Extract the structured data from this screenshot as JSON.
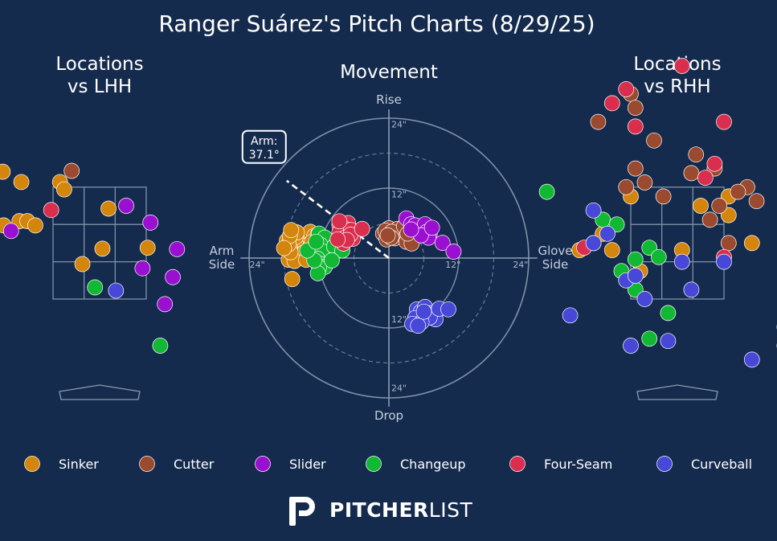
{
  "title": "Ranger Suárez's Pitch Charts (8/29/25)",
  "brand": {
    "bold": "PITCHER",
    "light": "LIST"
  },
  "colors": {
    "background": "#152b4d",
    "grid": "#8b9cb3",
    "Sinker": "#d3860b",
    "Cutter": "#9a4a2e",
    "Slider": "#9a10d0",
    "Changeup": "#11b833",
    "Four-Seam": "#d92e4d",
    "Curveball": "#4747d8"
  },
  "chart_data": [
    {
      "panel": "lhh",
      "type": "scatter",
      "title": "Locations\nvs LHH",
      "points": [
        {
          "pitch": "Sinker",
          "x": -2.08,
          "y": 3.53
        },
        {
          "pitch": "Sinker",
          "x": -1.68,
          "y": 3.31
        },
        {
          "pitch": "Sinker",
          "x": -0.85,
          "y": 3.31
        },
        {
          "pitch": "Sinker",
          "x": -0.76,
          "y": 3.15
        },
        {
          "pitch": "Sinker",
          "x": -1.72,
          "y": 2.47
        },
        {
          "pitch": "Sinker",
          "x": -1.55,
          "y": 2.47
        },
        {
          "pitch": "Sinker",
          "x": -1.38,
          "y": 2.38
        },
        {
          "pitch": "Sinker",
          "x": -2.06,
          "y": 2.38
        },
        {
          "pitch": "Sinker",
          "x": 0.19,
          "y": 2.74
        },
        {
          "pitch": "Sinker",
          "x": 0.06,
          "y": 1.88
        },
        {
          "pitch": "Sinker",
          "x": -0.37,
          "y": 1.55
        },
        {
          "pitch": "Sinker",
          "x": 1.03,
          "y": 1.9
        },
        {
          "pitch": "Cutter",
          "x": -0.6,
          "y": 3.55
        },
        {
          "pitch": "Slider",
          "x": 0.57,
          "y": 2.8
        },
        {
          "pitch": "Slider",
          "x": 1.09,
          "y": 2.44
        },
        {
          "pitch": "Slider",
          "x": 1.66,
          "y": 1.87
        },
        {
          "pitch": "Slider",
          "x": 0.92,
          "y": 1.46
        },
        {
          "pitch": "Slider",
          "x": 1.57,
          "y": 1.27
        },
        {
          "pitch": "Slider",
          "x": 1.4,
          "y": 0.69
        },
        {
          "pitch": "Slider",
          "x": -1.9,
          "y": 2.26
        },
        {
          "pitch": "Four-Seam",
          "x": -1.04,
          "y": 2.71
        },
        {
          "pitch": "Changeup",
          "x": -0.1,
          "y": 1.05
        },
        {
          "pitch": "Changeup",
          "x": 1.3,
          "y": -0.2
        },
        {
          "pitch": "Curveball",
          "x": 0.35,
          "y": 0.98
        }
      ]
    },
    {
      "panel": "movement",
      "type": "scatter",
      "title": "Movement",
      "labels": {
        "top": "Rise",
        "bottom": "Drop",
        "left": "Arm\nSide",
        "right": "Glove\nSide"
      },
      "rings": [
        {
          "r": 12,
          "label": "12\""
        },
        {
          "r": 24,
          "label": "24\""
        }
      ],
      "arm_angle": {
        "label": "Arm:\n37.1°",
        "deg": 37.1
      },
      "points": [
        {
          "pitch": "Sinker",
          "x": -14.5,
          "y": 3.5
        },
        {
          "pitch": "Sinker",
          "x": -13.5,
          "y": 4.5
        },
        {
          "pitch": "Sinker",
          "x": -12.8,
          "y": 3.8
        },
        {
          "pitch": "Sinker",
          "x": -14.0,
          "y": 2.2
        },
        {
          "pitch": "Sinker",
          "x": -15.0,
          "y": 1.5
        },
        {
          "pitch": "Sinker",
          "x": -16.0,
          "y": 2.5
        },
        {
          "pitch": "Sinker",
          "x": -16.5,
          "y": 1.0
        },
        {
          "pitch": "Sinker",
          "x": -15.5,
          "y": 0.5
        },
        {
          "pitch": "Sinker",
          "x": -17.0,
          "y": 2.0
        },
        {
          "pitch": "Sinker",
          "x": -17.5,
          "y": 3.0
        },
        {
          "pitch": "Sinker",
          "x": -16.0,
          "y": 3.6
        },
        {
          "pitch": "Sinker",
          "x": -13.2,
          "y": 2.8
        },
        {
          "pitch": "Sinker",
          "x": -12.2,
          "y": 4.0
        },
        {
          "pitch": "Sinker",
          "x": -11.8,
          "y": 3.0
        },
        {
          "pitch": "Sinker",
          "x": -13.8,
          "y": 1.2
        },
        {
          "pitch": "Sinker",
          "x": -15.8,
          "y": 4.4
        },
        {
          "pitch": "Sinker",
          "x": -17.0,
          "y": 0.4
        },
        {
          "pitch": "Sinker",
          "x": -16.8,
          "y": -0.2
        },
        {
          "pitch": "Sinker",
          "x": -14.5,
          "y": 1.0
        },
        {
          "pitch": "Sinker",
          "x": -17.2,
          "y": -0.3
        },
        {
          "pitch": "Sinker",
          "x": -16.2,
          "y": -0.5
        },
        {
          "pitch": "Sinker",
          "x": -14.2,
          "y": -0.3
        },
        {
          "pitch": "Sinker",
          "x": -16.9,
          "y": 1.0
        },
        {
          "pitch": "Sinker",
          "x": -17.2,
          "y": 2.4
        },
        {
          "pitch": "Sinker",
          "x": -17.0,
          "y": 3.8
        },
        {
          "pitch": "Sinker",
          "x": -16.8,
          "y": 4.8
        },
        {
          "pitch": "Sinker",
          "x": -16.6,
          "y": -3.6
        },
        {
          "pitch": "Sinker",
          "x": -18.0,
          "y": 1.7
        },
        {
          "pitch": "Cutter",
          "x": -1.0,
          "y": 4.2
        },
        {
          "pitch": "Cutter",
          "x": 0.0,
          "y": 5.1
        },
        {
          "pitch": "Cutter",
          "x": 0.8,
          "y": 4.0
        },
        {
          "pitch": "Cutter",
          "x": 1.0,
          "y": 3.4
        },
        {
          "pitch": "Cutter",
          "x": 2.0,
          "y": 4.1
        },
        {
          "pitch": "Cutter",
          "x": 1.5,
          "y": 5.0
        },
        {
          "pitch": "Cutter",
          "x": -0.4,
          "y": 3.2
        },
        {
          "pitch": "Cutter",
          "x": -0.6,
          "y": 4.7
        },
        {
          "pitch": "Cutter",
          "x": 0.5,
          "y": 4.5
        },
        {
          "pitch": "Cutter",
          "x": 2.6,
          "y": 5.4
        },
        {
          "pitch": "Cutter",
          "x": 3.0,
          "y": 2.8
        },
        {
          "pitch": "Cutter",
          "x": 3.9,
          "y": 2.5
        },
        {
          "pitch": "Cutter",
          "x": 3.2,
          "y": 4.2
        },
        {
          "pitch": "Cutter",
          "x": 0.4,
          "y": 3.5
        },
        {
          "pitch": "Cutter",
          "x": -0.2,
          "y": 3.9
        },
        {
          "pitch": "Slider",
          "x": 3.0,
          "y": 6.8
        },
        {
          "pitch": "Slider",
          "x": 3.8,
          "y": 5.8
        },
        {
          "pitch": "Slider",
          "x": 4.5,
          "y": 5.6
        },
        {
          "pitch": "Slider",
          "x": 6.2,
          "y": 5.8
        },
        {
          "pitch": "Slider",
          "x": 6.5,
          "y": 4.5
        },
        {
          "pitch": "Slider",
          "x": 7.0,
          "y": 4.1
        },
        {
          "pitch": "Slider",
          "x": 6.8,
          "y": 3.5
        },
        {
          "pitch": "Slider",
          "x": 5.5,
          "y": 3.9
        },
        {
          "pitch": "Slider",
          "x": 7.4,
          "y": 5.2
        },
        {
          "pitch": "Slider",
          "x": 9.2,
          "y": 2.6
        },
        {
          "pitch": "Slider",
          "x": 11.1,
          "y": 1.1
        },
        {
          "pitch": "Slider",
          "x": 3.8,
          "y": 4.9
        },
        {
          "pitch": "Changeup",
          "x": -12.0,
          "y": 4.2
        },
        {
          "pitch": "Changeup",
          "x": -11.0,
          "y": 3.5
        },
        {
          "pitch": "Changeup",
          "x": -11.8,
          "y": 2.3
        },
        {
          "pitch": "Changeup",
          "x": -12.8,
          "y": 2.0
        },
        {
          "pitch": "Changeup",
          "x": -11.5,
          "y": 1.2
        },
        {
          "pitch": "Changeup",
          "x": -12.3,
          "y": -0.1
        },
        {
          "pitch": "Changeup",
          "x": -11.8,
          "y": -1.0
        },
        {
          "pitch": "Changeup",
          "x": -11.0,
          "y": -1.5
        },
        {
          "pitch": "Changeup",
          "x": -12.0,
          "y": -1.6
        },
        {
          "pitch": "Changeup",
          "x": -12.2,
          "y": -2.6
        },
        {
          "pitch": "Changeup",
          "x": -9.4,
          "y": 2.0
        },
        {
          "pitch": "Changeup",
          "x": -8.0,
          "y": 1.3
        },
        {
          "pitch": "Changeup",
          "x": -9.8,
          "y": -0.4
        },
        {
          "pitch": "Changeup",
          "x": -12.8,
          "y": -0.4
        },
        {
          "pitch": "Changeup",
          "x": -14.0,
          "y": 1.3
        },
        {
          "pitch": "Changeup",
          "x": -12.5,
          "y": 2.8
        },
        {
          "pitch": "Four-Seam",
          "x": -7.0,
          "y": 6.0
        },
        {
          "pitch": "Four-Seam",
          "x": -7.5,
          "y": 5.0
        },
        {
          "pitch": "Four-Seam",
          "x": -8.5,
          "y": 5.7
        },
        {
          "pitch": "Four-Seam",
          "x": -8.5,
          "y": 4.4
        },
        {
          "pitch": "Four-Seam",
          "x": -6.5,
          "y": 4.8
        },
        {
          "pitch": "Four-Seam",
          "x": -7.5,
          "y": 3.5
        },
        {
          "pitch": "Four-Seam",
          "x": -6.2,
          "y": 3.3
        },
        {
          "pitch": "Four-Seam",
          "x": -8.5,
          "y": 6.3
        },
        {
          "pitch": "Four-Seam",
          "x": -6.6,
          "y": 4.0
        },
        {
          "pitch": "Four-Seam",
          "x": -7.8,
          "y": 2.5
        },
        {
          "pitch": "Four-Seam",
          "x": -4.6,
          "y": 5.0
        },
        {
          "pitch": "Four-Seam",
          "x": -7.2,
          "y": 3.1
        },
        {
          "pitch": "Four-Seam",
          "x": -8.8,
          "y": 3.2
        },
        {
          "pitch": "Curveball",
          "x": 4.8,
          "y": -8.8
        },
        {
          "pitch": "Curveball",
          "x": 5.5,
          "y": -9.2
        },
        {
          "pitch": "Curveball",
          "x": 6.2,
          "y": -8.4
        },
        {
          "pitch": "Curveball",
          "x": 7.0,
          "y": -9.5
        },
        {
          "pitch": "Curveball",
          "x": 6.0,
          "y": -10.0
        },
        {
          "pitch": "Curveball",
          "x": 5.0,
          "y": -11.0
        },
        {
          "pitch": "Curveball",
          "x": 4.5,
          "y": -10.3
        },
        {
          "pitch": "Curveball",
          "x": 8.0,
          "y": -9.5
        },
        {
          "pitch": "Curveball",
          "x": 8.0,
          "y": -10.5
        },
        {
          "pitch": "Curveball",
          "x": 7.0,
          "y": -10.2
        },
        {
          "pitch": "Curveball",
          "x": 5.6,
          "y": -11.0
        },
        {
          "pitch": "Curveball",
          "x": 8.6,
          "y": -8.7
        },
        {
          "pitch": "Curveball",
          "x": 10.2,
          "y": -8.8
        },
        {
          "pitch": "Curveball",
          "x": 4.0,
          "y": -11.3
        },
        {
          "pitch": "Curveball",
          "x": 5.0,
          "y": -11.6
        },
        {
          "pitch": "Curveball",
          "x": 6.0,
          "y": -9.2
        }
      ]
    },
    {
      "panel": "rhh",
      "type": "scatter",
      "title": "Locations\nvs RHH",
      "points": [
        {
          "pitch": "Sinker",
          "x": -1.0,
          "y": 3.0
        },
        {
          "pitch": "Sinker",
          "x": 1.1,
          "y": 3.0
        },
        {
          "pitch": "Sinker",
          "x": 1.1,
          "y": 2.6
        },
        {
          "pitch": "Sinker",
          "x": 0.5,
          "y": 2.8
        },
        {
          "pitch": "Sinker",
          "x": -1.6,
          "y": 2.2
        },
        {
          "pitch": "Sinker",
          "x": -2.1,
          "y": 1.85
        },
        {
          "pitch": "Sinker",
          "x": -1.8,
          "y": 2.0
        },
        {
          "pitch": "Sinker",
          "x": -1.4,
          "y": 1.85
        },
        {
          "pitch": "Sinker",
          "x": 0.1,
          "y": 1.85
        },
        {
          "pitch": "Sinker",
          "x": -0.8,
          "y": 1.4
        },
        {
          "pitch": "Sinker",
          "x": 1.6,
          "y": 2.0
        },
        {
          "pitch": "Cutter",
          "x": -1.7,
          "y": 4.6
        },
        {
          "pitch": "Cutter",
          "x": -1.0,
          "y": 5.2
        },
        {
          "pitch": "Cutter",
          "x": -0.9,
          "y": 4.9
        },
        {
          "pitch": "Cutter",
          "x": -0.5,
          "y": 4.2
        },
        {
          "pitch": "Cutter",
          "x": -0.9,
          "y": 3.6
        },
        {
          "pitch": "Cutter",
          "x": -0.7,
          "y": 3.3
        },
        {
          "pitch": "Cutter",
          "x": 0.3,
          "y": 3.5
        },
        {
          "pitch": "Cutter",
          "x": 0.8,
          "y": 3.6
        },
        {
          "pitch": "Cutter",
          "x": 0.9,
          "y": 2.8
        },
        {
          "pitch": "Cutter",
          "x": 0.7,
          "y": 2.5
        },
        {
          "pitch": "Cutter",
          "x": 1.5,
          "y": 3.2
        },
        {
          "pitch": "Cutter",
          "x": 1.3,
          "y": 3.1
        },
        {
          "pitch": "Cutter",
          "x": -0.3,
          "y": 3.0
        },
        {
          "pitch": "Cutter",
          "x": 1.1,
          "y": 2.0
        },
        {
          "pitch": "Cutter",
          "x": 1.7,
          "y": 2.9
        },
        {
          "pitch": "Cutter",
          "x": 0.4,
          "y": 3.9
        },
        {
          "pitch": "Cutter",
          "x": -1.1,
          "y": 3.2
        },
        {
          "pitch": "Four-Seam",
          "x": -1.4,
          "y": 5.0
        },
        {
          "pitch": "Four-Seam",
          "x": -1.1,
          "y": 5.3
        },
        {
          "pitch": "Four-Seam",
          "x": -0.9,
          "y": 4.5
        },
        {
          "pitch": "Four-Seam",
          "x": 0.1,
          "y": 5.8
        },
        {
          "pitch": "Four-Seam",
          "x": 1.0,
          "y": 4.6
        },
        {
          "pitch": "Four-Seam",
          "x": 0.8,
          "y": 3.7
        },
        {
          "pitch": "Four-Seam",
          "x": 0.6,
          "y": 3.4
        },
        {
          "pitch": "Four-Seam",
          "x": 1.0,
          "y": 1.7
        },
        {
          "pitch": "Four-Seam",
          "x": -2.0,
          "y": 1.9
        },
        {
          "pitch": "Changeup",
          "x": -2.8,
          "y": 3.1
        },
        {
          "pitch": "Changeup",
          "x": -1.6,
          "y": 2.5
        },
        {
          "pitch": "Changeup",
          "x": -1.3,
          "y": 2.4
        },
        {
          "pitch": "Changeup",
          "x": -0.6,
          "y": 1.9
        },
        {
          "pitch": "Changeup",
          "x": -0.9,
          "y": 1.65
        },
        {
          "pitch": "Changeup",
          "x": -1.2,
          "y": 1.4
        },
        {
          "pitch": "Changeup",
          "x": -0.4,
          "y": 1.7
        },
        {
          "pitch": "Changeup",
          "x": -0.9,
          "y": 1.0
        },
        {
          "pitch": "Changeup",
          "x": -0.2,
          "y": 0.5
        },
        {
          "pitch": "Changeup",
          "x": -0.6,
          "y": -0.05
        },
        {
          "pitch": "Curveball",
          "x": -1.8,
          "y": 2.7
        },
        {
          "pitch": "Curveball",
          "x": -1.5,
          "y": 2.2
        },
        {
          "pitch": "Curveball",
          "x": -1.8,
          "y": 2.0
        },
        {
          "pitch": "Curveball",
          "x": -1.1,
          "y": 1.2
        },
        {
          "pitch": "Curveball",
          "x": -0.9,
          "y": 1.3
        },
        {
          "pitch": "Curveball",
          "x": 0.1,
          "y": 1.6
        },
        {
          "pitch": "Curveball",
          "x": -0.7,
          "y": 0.8
        },
        {
          "pitch": "Curveball",
          "x": 0.3,
          "y": 1.0
        },
        {
          "pitch": "Curveball",
          "x": 1.0,
          "y": 1.6
        },
        {
          "pitch": "Curveball",
          "x": -2.3,
          "y": 0.45
        },
        {
          "pitch": "Curveball",
          "x": -1.0,
          "y": -0.2
        },
        {
          "pitch": "Curveball",
          "x": -0.2,
          "y": -0.1
        },
        {
          "pitch": "Curveball",
          "x": 1.6,
          "y": -0.5
        },
        {
          "pitch": "Curveball",
          "x": 2.3,
          "y": -0.2
        },
        {
          "pitch": "Curveball",
          "x": 2.3,
          "y": 0.2
        }
      ]
    }
  ],
  "legend": [
    "Sinker",
    "Cutter",
    "Slider",
    "Changeup",
    "Four-Seam",
    "Curveball"
  ]
}
